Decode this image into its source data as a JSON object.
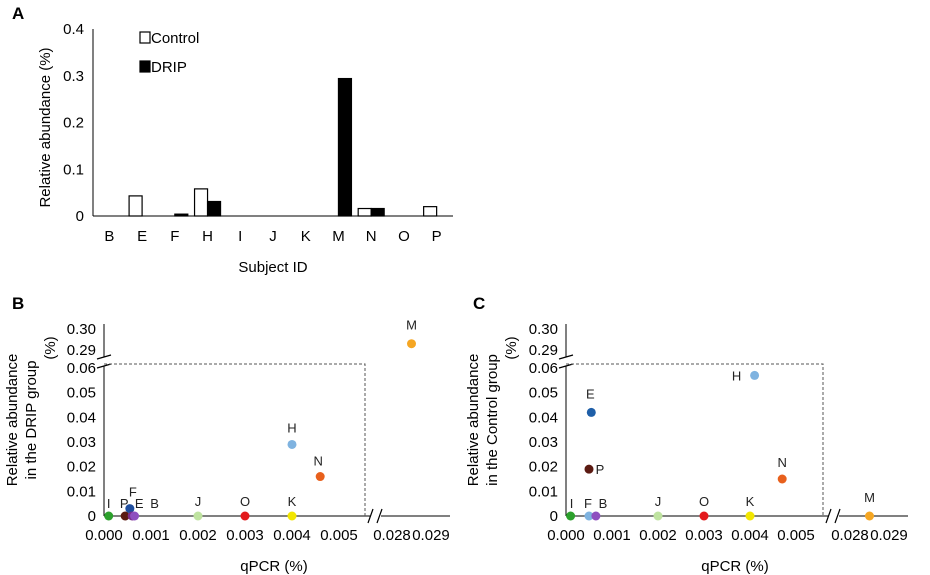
{
  "chart_data": [
    {
      "panel": "A",
      "type": "bar",
      "ylabel": "Relative abundance (%)",
      "xlabel": "Subject ID",
      "ylim": [
        0,
        0.4
      ],
      "yticks": [
        "0",
        "0.1",
        "0.2",
        "0.3",
        "0.4"
      ],
      "categories": [
        "B",
        "E",
        "F",
        "H",
        "I",
        "J",
        "K",
        "M",
        "N",
        "O",
        "P"
      ],
      "legend_position": "top-left",
      "series": [
        {
          "name": "Control",
          "color": "#ffffff",
          "values": [
            0,
            0.043,
            0,
            0.058,
            0,
            0,
            0,
            0,
            0.016,
            0,
            0.02
          ]
        },
        {
          "name": "DRIP",
          "color": "#000000",
          "values": [
            0,
            0,
            0.004,
            0.031,
            0,
            0,
            0,
            0.294,
            0.016,
            0,
            0
          ]
        }
      ]
    },
    {
      "panel": "B",
      "type": "scatter",
      "ylabel_lines": [
        "Relative abundance",
        "in the DRIP group",
        "(%)"
      ],
      "xlabel": "qPCR (%)",
      "xticks": [
        "0.000",
        "0.001",
        "0.002",
        "0.003",
        "0.004",
        "0.005",
        "0.028",
        "0.029"
      ],
      "yticks_low": [
        "0",
        "0.01",
        "0.02",
        "0.03",
        "0.04",
        "0.05",
        "0.06"
      ],
      "yticks_high": [
        "0.29",
        "0.30"
      ],
      "points": [
        {
          "label": "I",
          "x": 0.0001,
          "y": 0.0,
          "color": "#2ca02c"
        },
        {
          "label": "P",
          "x": 0.00045,
          "y": 0.0,
          "color": "#5b1a12"
        },
        {
          "label": "F",
          "x": 0.00055,
          "y": 0.003,
          "color": "#1f4e9e"
        },
        {
          "label": "E",
          "x": 0.0006,
          "y": 0.0,
          "color": "#7b2c8c"
        },
        {
          "label": "B",
          "x": 0.00065,
          "y": 0.0,
          "color": "#8e4fbf"
        },
        {
          "label": "J",
          "x": 0.002,
          "y": 0.0,
          "color": "#bfe3a0"
        },
        {
          "label": "O",
          "x": 0.003,
          "y": 0.0,
          "color": "#e31a1c"
        },
        {
          "label": "K",
          "x": 0.004,
          "y": 0.0,
          "color": "#f2e600"
        },
        {
          "label": "H",
          "x": 0.004,
          "y": 0.029,
          "color": "#7fb3e0"
        },
        {
          "label": "N",
          "x": 0.0046,
          "y": 0.016,
          "color": "#e8601c"
        },
        {
          "label": "M",
          "x": 0.0285,
          "y": 0.293,
          "color": "#f5a623"
        }
      ]
    },
    {
      "panel": "C",
      "type": "scatter",
      "ylabel_lines": [
        "Relative abundance",
        "in the Control group",
        "(%)"
      ],
      "xlabel": "qPCR (%)",
      "xticks": [
        "0.000",
        "0.001",
        "0.002",
        "0.003",
        "0.004",
        "0.005",
        "0.028",
        "0.029"
      ],
      "yticks_low": [
        "0",
        "0.01",
        "0.02",
        "0.03",
        "0.04",
        "0.05",
        "0.06"
      ],
      "yticks_high": [
        "0.29",
        "0.30"
      ],
      "points": [
        {
          "label": "I",
          "x": 0.0001,
          "y": 0.0,
          "color": "#2ca02c"
        },
        {
          "label": "F",
          "x": 0.0005,
          "y": 0.0,
          "color": "#7fb3e0"
        },
        {
          "label": "B",
          "x": 0.00065,
          "y": 0.0,
          "color": "#8e4fbf"
        },
        {
          "label": "E",
          "x": 0.00055,
          "y": 0.042,
          "color": "#1f5fa8"
        },
        {
          "label": "P",
          "x": 0.0005,
          "y": 0.019,
          "color": "#5b1a12"
        },
        {
          "label": "J",
          "x": 0.002,
          "y": 0.0,
          "color": "#bfe3a0"
        },
        {
          "label": "O",
          "x": 0.003,
          "y": 0.0,
          "color": "#e31a1c"
        },
        {
          "label": "K",
          "x": 0.004,
          "y": 0.0,
          "color": "#f2e600"
        },
        {
          "label": "H",
          "x": 0.0041,
          "y": 0.057,
          "color": "#7fb3e0"
        },
        {
          "label": "N",
          "x": 0.0047,
          "y": 0.015,
          "color": "#e8601c"
        },
        {
          "label": "M",
          "x": 0.0285,
          "y": 0.0,
          "color": "#f5a623"
        }
      ]
    }
  ]
}
